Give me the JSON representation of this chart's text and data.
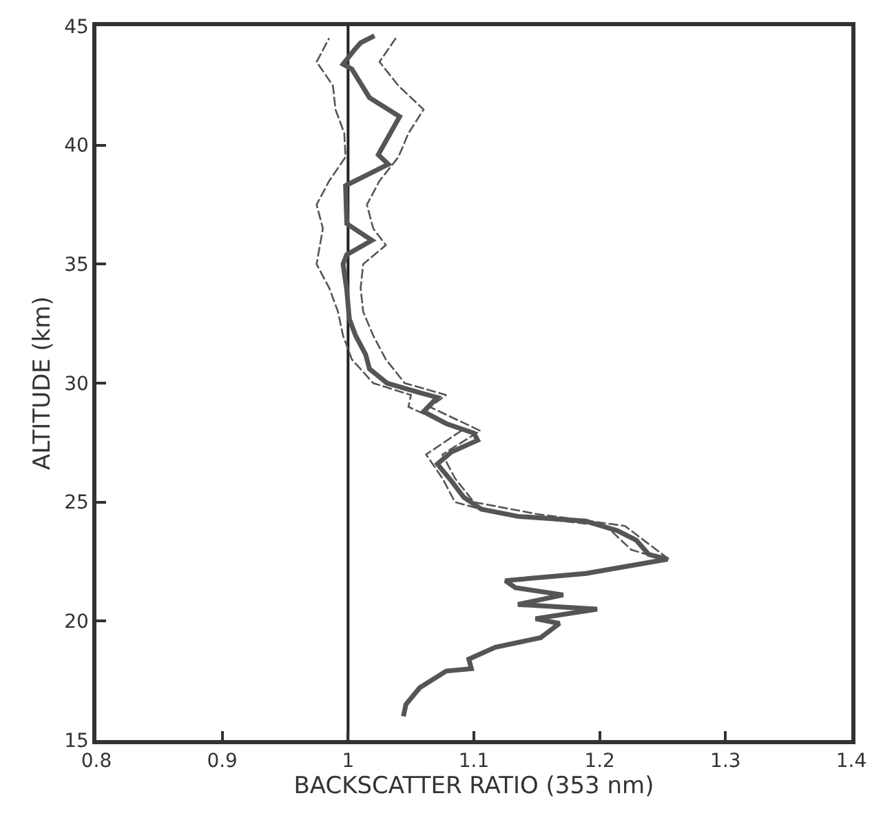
{
  "chart_data": {
    "type": "line",
    "xlabel": "BACKSCATTER RATIO (353 nm)",
    "ylabel": "ALTITUDE (km)",
    "xlim": [
      0.8,
      1.4
    ],
    "xticks": [
      0.8,
      0.9,
      1,
      1.1,
      1.2,
      1.3,
      1.4
    ],
    "ylim": [
      15,
      45
    ],
    "yticks": [
      15,
      20,
      25,
      30,
      35,
      40,
      45
    ],
    "grid": false,
    "marker": "none",
    "ref_lines": [
      {
        "axis": "x",
        "value": 1,
        "color": "#222222",
        "line_style": "solid"
      }
    ],
    "series": [
      {
        "color": "#555555",
        "line_style": "solid",
        "x": [
          1.044,
          1.046,
          1.057,
          1.078,
          1.098,
          1.096,
          1.117,
          1.153,
          1.168,
          1.149,
          1.198,
          1.135,
          1.171,
          1.133,
          1.125,
          1.189,
          1.254,
          1.239,
          1.229,
          1.214,
          1.189,
          1.135,
          1.106,
          1.092,
          1.082,
          1.071,
          1.082,
          1.103,
          1.1,
          1.078,
          1.06,
          1.071,
          1.057,
          1.031,
          1.017,
          1.014,
          1.006,
          1.001,
          0.999,
          0.996,
          0.999,
          1.019,
          0.999,
          0.998,
          1.017,
          1.032,
          1.024,
          1.041,
          1.017,
          1.003,
          0.996,
          1.005,
          1.01,
          1.021
        ],
        "values": [
          16.0,
          16.5,
          17.2,
          17.9,
          18.0,
          18.4,
          18.9,
          19.3,
          19.9,
          20.1,
          20.5,
          20.7,
          21.1,
          21.4,
          21.7,
          22.0,
          22.6,
          22.8,
          23.4,
          23.8,
          24.2,
          24.4,
          24.7,
          25.2,
          25.9,
          26.6,
          27.1,
          27.6,
          27.9,
          28.3,
          28.8,
          29.4,
          29.6,
          30.0,
          30.6,
          31.2,
          32.0,
          32.7,
          33.9,
          35.0,
          35.4,
          36.0,
          36.7,
          38.3,
          38.8,
          39.2,
          39.6,
          41.2,
          42.0,
          43.2,
          43.4,
          44.0,
          44.3,
          44.6
        ]
      },
      {
        "color": "#555555",
        "line_style": "dashed",
        "x": [
          1.255,
          1.245,
          1.22,
          1.15,
          1.1,
          1.085,
          1.075,
          1.105,
          1.065,
          1.078,
          1.045,
          1.03,
          1.02,
          1.012,
          1.01,
          1.012,
          1.03,
          1.02,
          1.015,
          1.025,
          1.04,
          1.048,
          1.06,
          1.04,
          1.025,
          1.038
        ],
        "values": [
          22.6,
          23,
          24,
          24.5,
          25,
          26,
          27,
          28,
          29,
          29.5,
          30,
          31,
          32,
          33,
          34,
          35,
          35.8,
          36.5,
          37.5,
          38.5,
          39.5,
          40.5,
          41.5,
          42.5,
          43.5,
          44.5
        ]
      },
      {
        "color": "#555555",
        "line_style": "dashed",
        "x": [
          1.25,
          1.225,
          1.205,
          1.12,
          1.085,
          1.075,
          1.062,
          1.09,
          1.048,
          1.05,
          1.02,
          1.003,
          0.996,
          0.992,
          0.985,
          0.975,
          0.98,
          0.975,
          0.985,
          0.998,
          0.997,
          0.99,
          0.988,
          0.975,
          0.985
        ],
        "values": [
          22.6,
          23,
          24,
          24.5,
          25,
          26,
          27,
          28,
          29,
          29.5,
          30,
          31,
          32,
          33,
          34,
          35,
          36.5,
          37.5,
          38.5,
          39.5,
          40.5,
          41.5,
          42.5,
          43.5,
          44.5
        ]
      }
    ]
  }
}
